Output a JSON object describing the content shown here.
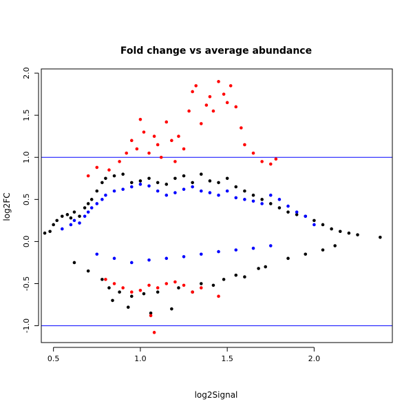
{
  "chart_data": {
    "type": "scatter",
    "title": "Fold change vs average abundance",
    "xlabel": "log2Signal",
    "ylabel": "log2FC",
    "xlim": [
      0.43,
      2.45
    ],
    "ylim": [
      -1.2,
      2.05
    ],
    "x_ticks": [
      "0.5",
      "1.0",
      "1.5",
      "2.0"
    ],
    "y_ticks": [
      "-1.0",
      "-0.5",
      "0.0",
      "0.5",
      "1.0",
      "1.5",
      "2.0"
    ],
    "hlines": [
      {
        "y": 1.0,
        "color": "#0000ff"
      },
      {
        "y": -1.0,
        "color": "#0000ff"
      }
    ],
    "grid": false,
    "legend": "none",
    "series_colors": {
      "background": "#000000",
      "moderate": "#0000ff",
      "significant": "#ff0000"
    },
    "series": [
      {
        "color_key": "background",
        "x": [
          0.45,
          0.48,
          0.5,
          0.52,
          0.55,
          0.58,
          0.6,
          0.62,
          0.65,
          0.68,
          0.7,
          0.72,
          0.75,
          0.78,
          0.8,
          0.85,
          0.9,
          0.95,
          1.0,
          1.05,
          1.1,
          1.15,
          1.2,
          1.25,
          1.3,
          1.35,
          1.4,
          1.45,
          1.5,
          1.55,
          1.6,
          1.65,
          1.7,
          1.75,
          1.8,
          1.85,
          1.9,
          1.95,
          2.0,
          2.05,
          2.1,
          2.15,
          2.2,
          2.25,
          2.38,
          0.82,
          0.88,
          0.95,
          1.02,
          1.1,
          1.22,
          1.35,
          1.48,
          1.6,
          1.72,
          0.84,
          0.93,
          1.06,
          1.18,
          1.3,
          1.42,
          1.55,
          1.68,
          0.62,
          0.7,
          0.78,
          1.85,
          1.95,
          2.05,
          2.12
        ],
        "y": [
          0.1,
          0.12,
          0.2,
          0.25,
          0.3,
          0.32,
          0.28,
          0.35,
          0.3,
          0.4,
          0.45,
          0.5,
          0.6,
          0.7,
          0.75,
          0.78,
          0.8,
          0.7,
          0.72,
          0.75,
          0.7,
          0.68,
          0.75,
          0.78,
          0.7,
          0.8,
          0.72,
          0.7,
          0.75,
          0.65,
          0.6,
          0.55,
          0.5,
          0.45,
          0.4,
          0.35,
          0.32,
          0.3,
          0.25,
          0.2,
          0.15,
          0.12,
          0.1,
          0.08,
          0.05,
          -0.55,
          -0.6,
          -0.65,
          -0.62,
          -0.6,
          -0.55,
          -0.5,
          -0.45,
          -0.42,
          -0.3,
          -0.7,
          -0.78,
          -0.85,
          -0.8,
          -0.6,
          -0.52,
          -0.4,
          -0.32,
          -0.25,
          -0.35,
          -0.45,
          -0.2,
          -0.15,
          -0.1,
          -0.05
        ]
      },
      {
        "color_key": "moderate",
        "x": [
          0.55,
          0.6,
          0.62,
          0.65,
          0.68,
          0.7,
          0.72,
          0.75,
          0.78,
          0.8,
          0.85,
          0.9,
          0.95,
          1.0,
          1.05,
          1.1,
          1.15,
          1.2,
          1.25,
          1.3,
          1.35,
          1.4,
          1.45,
          1.5,
          1.55,
          1.6,
          1.65,
          1.7,
          1.75,
          1.8,
          1.85,
          1.9,
          1.95,
          2.0,
          0.75,
          0.85,
          0.95,
          1.05,
          1.15,
          1.25,
          1.35,
          1.45,
          1.55,
          1.65,
          1.75
        ],
        "y": [
          0.15,
          0.2,
          0.25,
          0.22,
          0.3,
          0.35,
          0.4,
          0.45,
          0.5,
          0.55,
          0.6,
          0.62,
          0.65,
          0.68,
          0.66,
          0.6,
          0.55,
          0.58,
          0.62,
          0.65,
          0.6,
          0.58,
          0.55,
          0.6,
          0.52,
          0.5,
          0.48,
          0.45,
          0.55,
          0.5,
          0.42,
          0.35,
          0.3,
          0.2,
          -0.15,
          -0.2,
          -0.25,
          -0.22,
          -0.2,
          -0.18,
          -0.15,
          -0.12,
          -0.1,
          -0.08,
          -0.05
        ]
      },
      {
        "color_key": "significant",
        "x": [
          0.7,
          0.75,
          0.82,
          0.88,
          0.92,
          0.95,
          0.98,
          1.0,
          1.02,
          1.05,
          1.08,
          1.1,
          1.12,
          1.15,
          1.18,
          1.2,
          1.22,
          1.25,
          1.28,
          1.3,
          1.32,
          1.35,
          1.38,
          1.4,
          1.42,
          1.45,
          1.48,
          1.5,
          1.52,
          1.55,
          1.58,
          1.6,
          1.65,
          1.7,
          1.75,
          1.78,
          0.8,
          0.85,
          0.9,
          0.95,
          1.0,
          1.05,
          1.1,
          1.15,
          1.2,
          1.25,
          1.3,
          1.35,
          1.45,
          1.06,
          1.08
        ],
        "y": [
          0.78,
          0.88,
          0.85,
          0.95,
          1.05,
          1.2,
          1.1,
          1.45,
          1.3,
          1.05,
          1.25,
          1.15,
          1.0,
          1.42,
          1.2,
          0.95,
          1.25,
          1.1,
          1.55,
          1.78,
          1.85,
          1.4,
          1.62,
          1.72,
          1.55,
          1.9,
          1.75,
          1.65,
          1.85,
          1.6,
          1.35,
          1.15,
          1.05,
          0.95,
          0.92,
          0.98,
          -0.45,
          -0.5,
          -0.55,
          -0.6,
          -0.58,
          -0.52,
          -0.55,
          -0.5,
          -0.48,
          -0.52,
          -0.6,
          -0.55,
          -0.65,
          -0.88,
          -1.08
        ]
      }
    ]
  }
}
